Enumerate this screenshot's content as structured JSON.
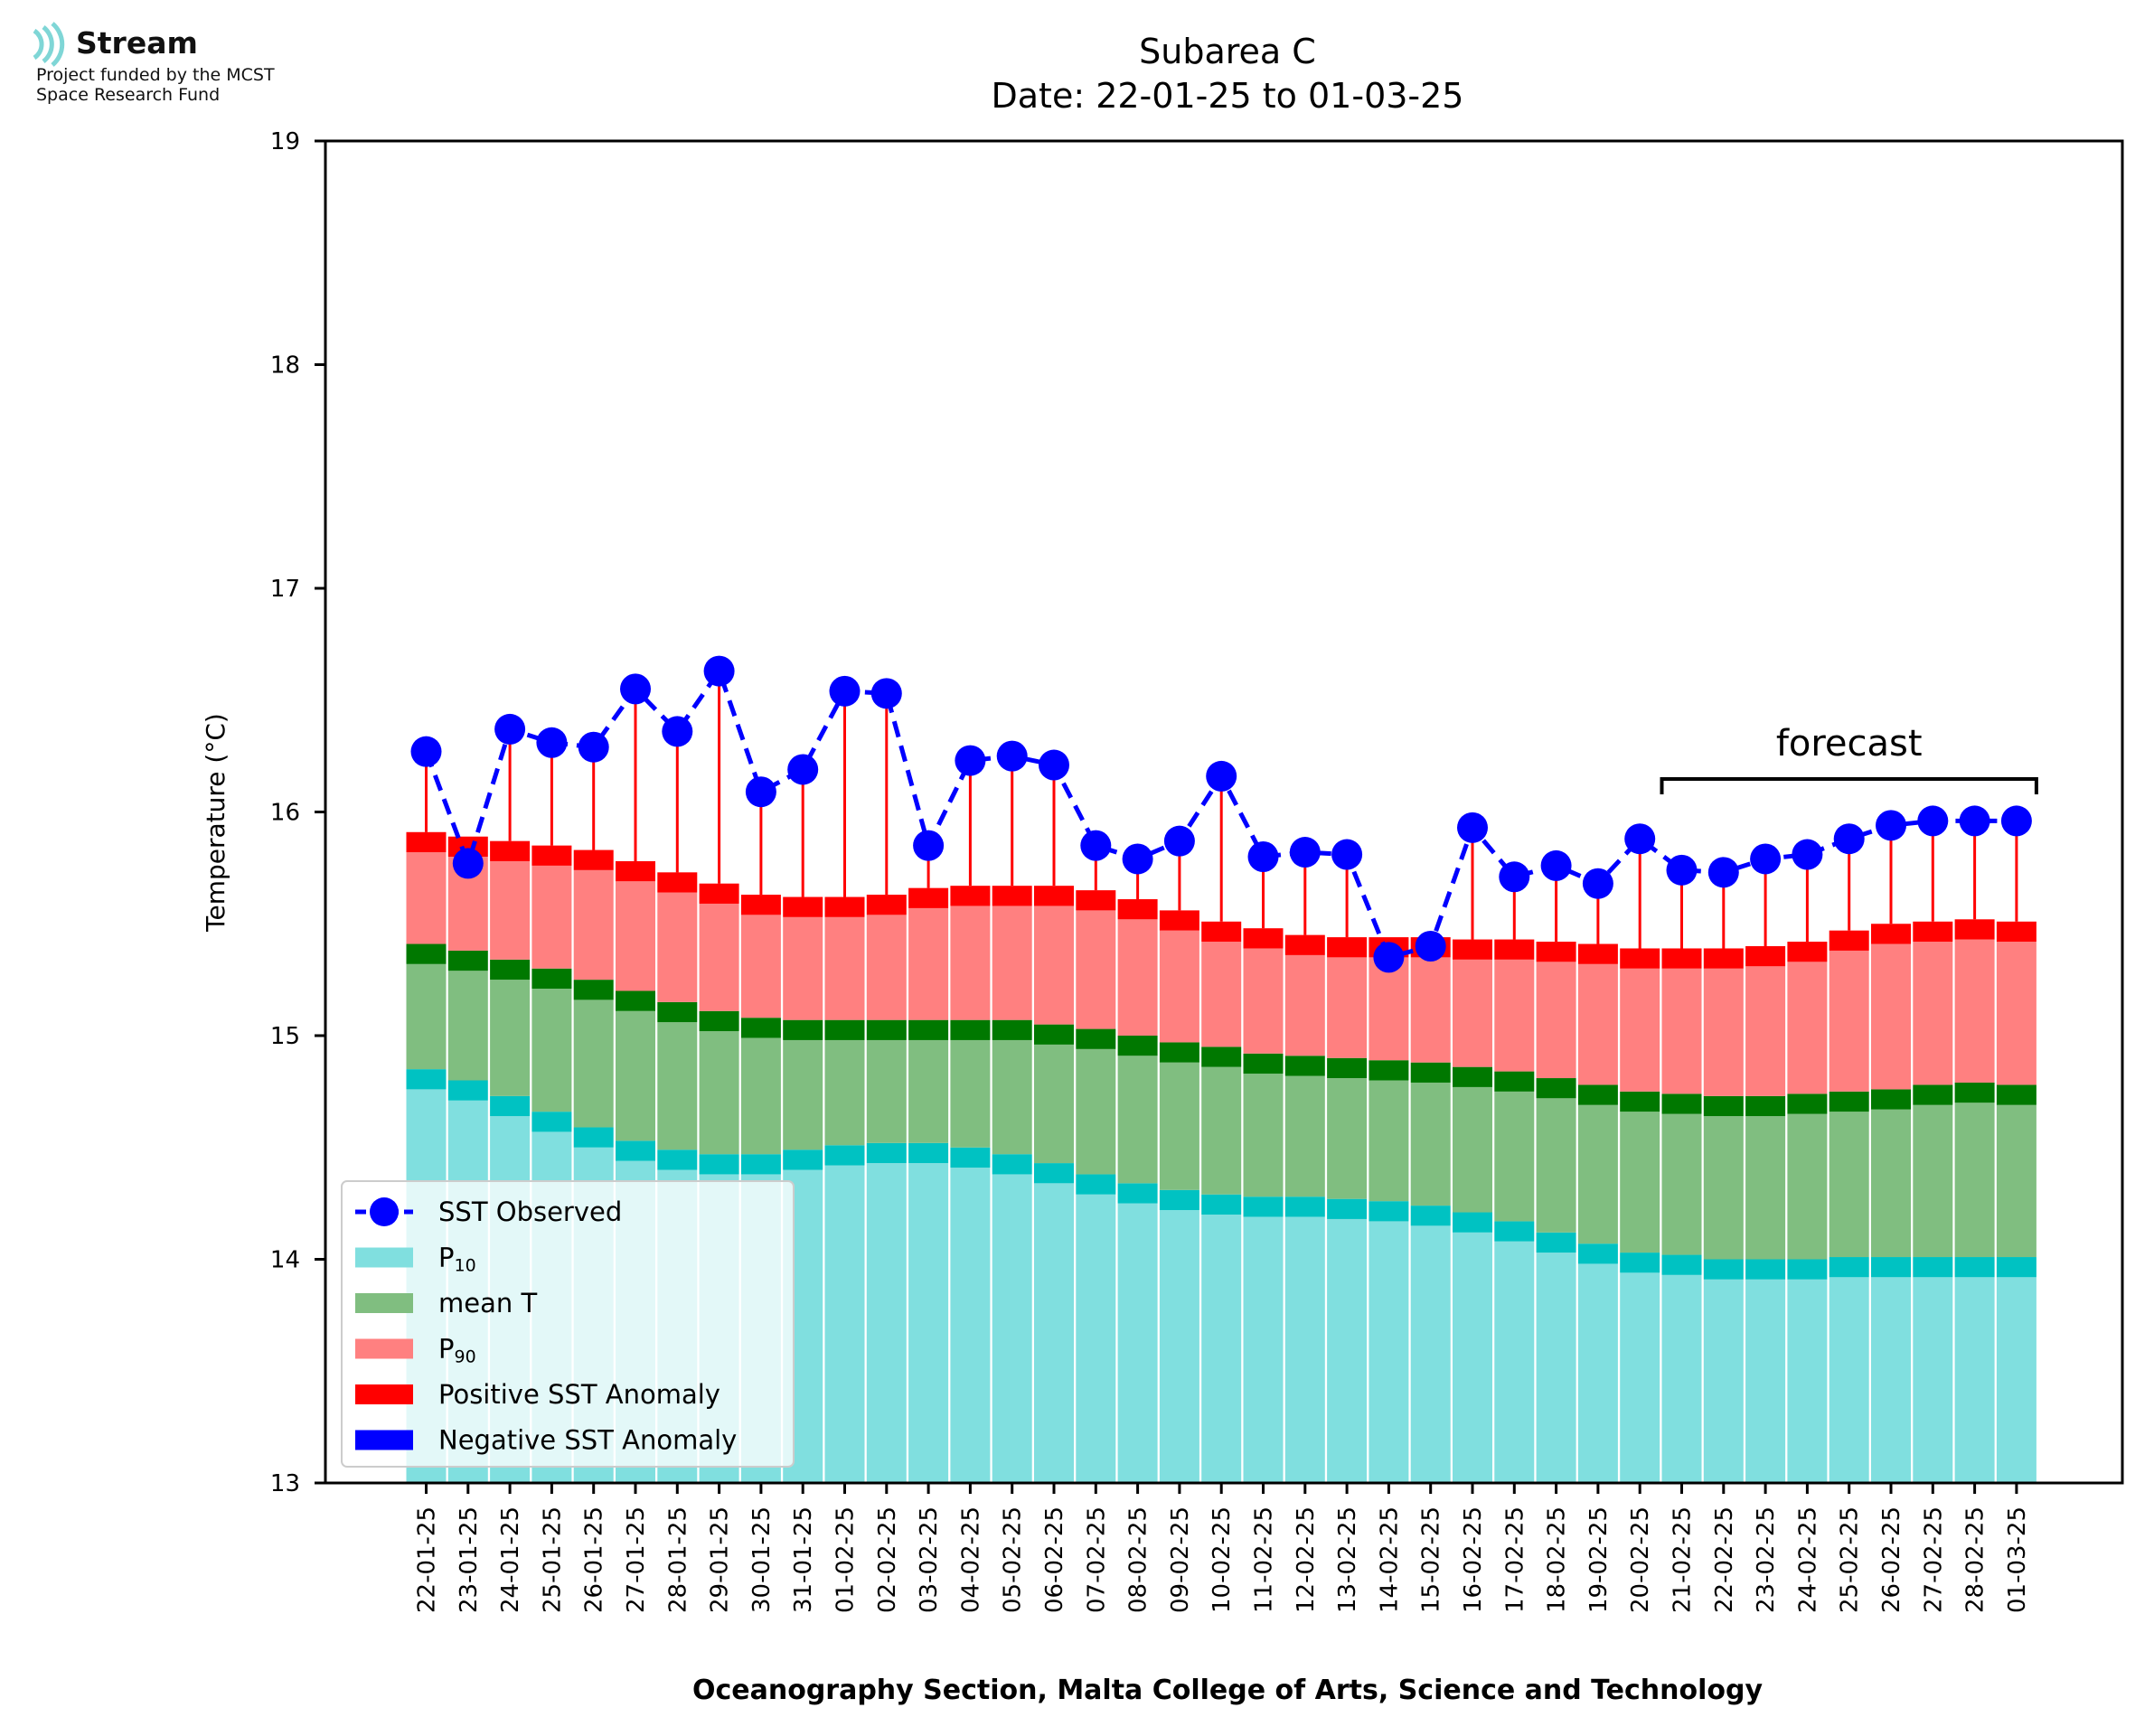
{
  "logo": {
    "brand": "Stream",
    "line1": "Project funded by the MCST",
    "line2": "Space Research Fund"
  },
  "chart_data": {
    "type": "bar",
    "title": "Subarea C",
    "subtitle": "Date: 22-01-25 to 01-03-25",
    "xlabel": "Oceanography Section, Malta College of Arts, Science and Technology",
    "ylabel": "Temperature (°C)",
    "ylim": [
      13,
      19
    ],
    "yticks": [
      13,
      14,
      15,
      16,
      17,
      18,
      19
    ],
    "annotation": "forecast",
    "forecast_range": [
      "21-02-25",
      "01-03-25"
    ],
    "legend_position": "lower-left",
    "legend": [
      "SST Observed",
      "P10",
      "mean T",
      "P90",
      "Positive SST Anomaly",
      "Negative SST Anomaly"
    ],
    "categories": [
      "22-01-25",
      "23-01-25",
      "24-01-25",
      "25-01-25",
      "26-01-25",
      "27-01-25",
      "28-01-25",
      "29-01-25",
      "30-01-25",
      "31-01-25",
      "01-02-25",
      "02-02-25",
      "03-02-25",
      "04-02-25",
      "05-02-25",
      "06-02-25",
      "07-02-25",
      "08-02-25",
      "09-02-25",
      "10-02-25",
      "11-02-25",
      "12-02-25",
      "13-02-25",
      "14-02-25",
      "15-02-25",
      "16-02-25",
      "17-02-25",
      "18-02-25",
      "19-02-25",
      "20-02-25",
      "21-02-25",
      "22-02-25",
      "23-02-25",
      "24-02-25",
      "25-02-25",
      "26-02-25",
      "27-02-25",
      "28-02-25",
      "01-03-25"
    ],
    "series": [
      {
        "name": "P10",
        "color": "#80dfdf",
        "band_color": "#00c2c2",
        "values": [
          14.85,
          14.8,
          14.73,
          14.66,
          14.59,
          14.53,
          14.49,
          14.47,
          14.47,
          14.49,
          14.51,
          14.52,
          14.52,
          14.5,
          14.47,
          14.43,
          14.38,
          14.34,
          14.31,
          14.29,
          14.28,
          14.28,
          14.27,
          14.26,
          14.24,
          14.21,
          14.17,
          14.12,
          14.07,
          14.03,
          14.02,
          14.0,
          14.0,
          14.0,
          14.01,
          14.01,
          14.01,
          14.01,
          14.01
        ]
      },
      {
        "name": "mean T",
        "color": "#80be80",
        "band_color": "#007800",
        "values": [
          15.41,
          15.38,
          15.34,
          15.3,
          15.25,
          15.2,
          15.15,
          15.11,
          15.08,
          15.07,
          15.07,
          15.07,
          15.07,
          15.07,
          15.07,
          15.05,
          15.03,
          15.0,
          14.97,
          14.95,
          14.92,
          14.91,
          14.9,
          14.89,
          14.88,
          14.86,
          14.84,
          14.81,
          14.78,
          14.75,
          14.74,
          14.73,
          14.73,
          14.74,
          14.75,
          14.76,
          14.78,
          14.79,
          14.78
        ]
      },
      {
        "name": "P90",
        "color": "#ff8080",
        "band_color": "#ff0000",
        "values": [
          15.91,
          15.89,
          15.87,
          15.85,
          15.83,
          15.78,
          15.73,
          15.68,
          15.63,
          15.62,
          15.62,
          15.63,
          15.66,
          15.67,
          15.67,
          15.67,
          15.65,
          15.61,
          15.56,
          15.51,
          15.48,
          15.45,
          15.44,
          15.44,
          15.44,
          15.43,
          15.43,
          15.42,
          15.41,
          15.39,
          15.39,
          15.39,
          15.4,
          15.42,
          15.47,
          15.5,
          15.51,
          15.52,
          15.51
        ]
      },
      {
        "name": "SST Observed",
        "color": "#0000ff",
        "values": [
          16.27,
          15.77,
          16.37,
          16.31,
          16.29,
          16.55,
          16.36,
          16.63,
          16.09,
          16.19,
          16.54,
          16.53,
          15.85,
          16.23,
          16.25,
          16.21,
          15.85,
          15.79,
          15.87,
          16.16,
          15.8,
          15.82,
          15.81,
          15.35,
          15.4,
          15.93,
          15.71,
          15.76,
          15.68,
          15.88,
          15.74,
          15.73,
          15.79,
          15.81,
          15.88,
          15.94,
          15.96,
          15.96,
          15.96
        ]
      }
    ],
    "anomaly_colors": {
      "positive": "#ff0000",
      "negative": "#0000ff"
    }
  }
}
